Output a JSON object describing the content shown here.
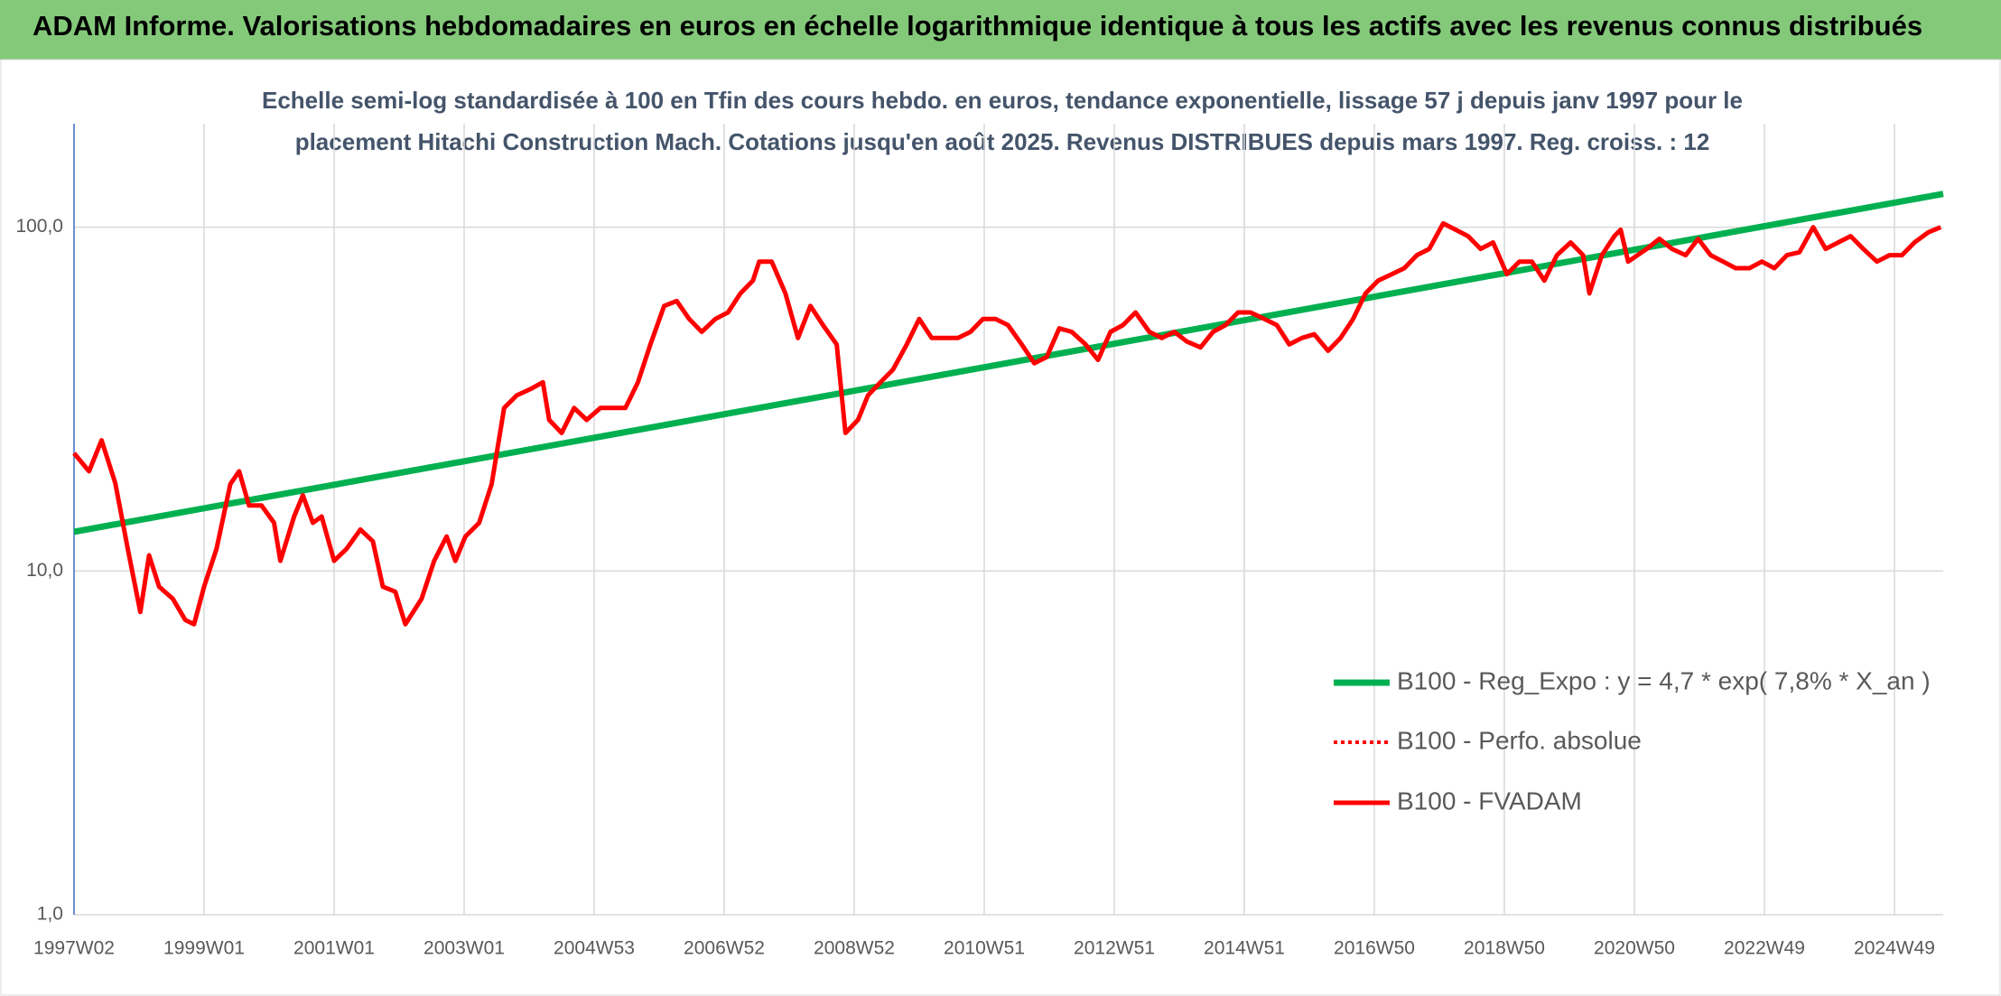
{
  "chart_data": {
    "type": "line",
    "title": "ADAM Informe. Valorisations hebdomadaires en euros en échelle logarithmique identique à tous les actifs avec les revenus connus distribués",
    "subtitle": [
      "Echelle semi-log standardisée à 100 en Tfin des cours hebdo. en euros, tendance exponentielle, lissage 57 j depuis janv 1997 pour le",
      "placement Hitachi Construction Mach. Cotations jusqu'en août 2025. Revenus DISTRIBUES depuis mars 1997. Reg. croiss. : 12"
    ],
    "log_scale": true,
    "grid": true,
    "legend": "right",
    "xlim": [
      0,
      1495
    ],
    "ylim": [
      1,
      200
    ],
    "yticks": [
      {
        "value": 1,
        "label": "1,0"
      },
      {
        "value": 10,
        "label": "10,0"
      },
      {
        "value": 100,
        "label": "100,0"
      }
    ],
    "xticks": [
      {
        "value": 0,
        "label": "1997W02"
      },
      {
        "value": 104,
        "label": "1999W01"
      },
      {
        "value": 208,
        "label": "2001W01"
      },
      {
        "value": 312,
        "label": "2003W01"
      },
      {
        "value": 416,
        "label": "2004W53"
      },
      {
        "value": 520,
        "label": "2006W52"
      },
      {
        "value": 624,
        "label": "2008W52"
      },
      {
        "value": 728,
        "label": "2010W51"
      },
      {
        "value": 832,
        "label": "2012W51"
      },
      {
        "value": 936,
        "label": "2014W51"
      },
      {
        "value": 1040,
        "label": "2016W50"
      },
      {
        "value": 1144,
        "label": "2018W50"
      },
      {
        "value": 1248,
        "label": "2020W50"
      },
      {
        "value": 1352,
        "label": "2022W49"
      },
      {
        "value": 1456,
        "label": "2024W49"
      }
    ],
    "series": [
      {
        "name": "B100 - Reg_Expo : y = 4,7 * exp( 7,8% *  X_an )",
        "color": "#00b050",
        "x": [
          0,
          1495
        ],
        "values": [
          13,
          125
        ]
      },
      {
        "name": "B100 - Perfo. absolue",
        "color": "#ff0000",
        "dash": "dotted"
      },
      {
        "name": "B100 - FVADAM",
        "color": "#ff0000",
        "x": [
          0,
          12,
          22,
          33,
          43,
          53,
          60,
          68,
          79,
          89,
          96,
          104,
          114,
          125,
          132,
          140,
          150,
          160,
          165,
          176,
          183,
          191,
          198,
          208,
          218,
          229,
          239,
          247,
          257,
          265,
          278,
          288,
          298,
          305,
          313,
          324,
          334,
          344,
          354,
          365,
          375,
          380,
          390,
          400,
          410,
          421,
          431,
          441,
          451,
          461,
          472,
          482,
          492,
          502,
          513,
          523,
          533,
          543,
          548,
          558,
          569,
          579,
          589,
          599,
          610,
          617,
          627,
          635,
          645,
          655,
          666,
          676,
          686,
          696,
          707,
          717,
          727,
          737,
          747,
          758,
          768,
          778,
          788,
          798,
          809,
          819,
          829,
          839,
          849,
          860,
          870,
          880,
          890,
          901,
          911,
          921,
          931,
          941,
          952,
          962,
          972,
          982,
          992,
          1003,
          1013,
          1023,
          1033,
          1043,
          1054,
          1064,
          1074,
          1084,
          1095,
          1105,
          1115,
          1125,
          1135,
          1146,
          1156,
          1166,
          1176,
          1186,
          1197,
          1207,
          1212,
          1222,
          1232,
          1237,
          1243,
          1258,
          1268,
          1278,
          1289,
          1299,
          1309,
          1319,
          1329,
          1340,
          1350,
          1360,
          1370,
          1380,
          1391,
          1401,
          1411,
          1421,
          1431,
          1442,
          1452,
          1462,
          1472,
          1483,
          1493
        ],
        "values": [
          22,
          19.5,
          24,
          18,
          11.6,
          7.6,
          11.1,
          9,
          8.3,
          7.2,
          7,
          9,
          11.6,
          17.9,
          19.5,
          15.5,
          15.5,
          13.8,
          10.7,
          14.4,
          16.6,
          13.8,
          14.4,
          10.7,
          11.6,
          13.2,
          12.2,
          9,
          8.7,
          7,
          8.3,
          10.7,
          12.6,
          10.7,
          12.6,
          13.8,
          17.9,
          29.8,
          32.4,
          33.8,
          35.4,
          27.5,
          25.2,
          29.8,
          27.5,
          29.8,
          29.8,
          29.8,
          35.4,
          45.6,
          59,
          61,
          54.1,
          49.6,
          54.1,
          56.5,
          64.2,
          69.9,
          79.4,
          79.4,
          64.2,
          47.6,
          59,
          51.9,
          45.6,
          25.2,
          27.5,
          32.4,
          35.4,
          38.5,
          45.6,
          54.1,
          47.6,
          47.6,
          47.6,
          49.6,
          54.1,
          54.1,
          51.9,
          45.6,
          40.2,
          41.9,
          50.8,
          49.6,
          45.6,
          41.1,
          49.6,
          51.9,
          56.5,
          49.6,
          47.6,
          49.6,
          46.5,
          44.7,
          49.6,
          51.9,
          56.5,
          56.5,
          54.1,
          51.9,
          45.6,
          47.6,
          48.8,
          43.7,
          47.6,
          54.1,
          64.2,
          69.9,
          73,
          76,
          82.9,
          86.5,
          102.6,
          98.3,
          94.2,
          86.5,
          90.3,
          73,
          79.4,
          79.4,
          69.9,
          82.9,
          90.3,
          82.9,
          64.2,
          82.9,
          94.2,
          98.3,
          79.4,
          86.5,
          92.5,
          86.5,
          82.9,
          92.5,
          82.9,
          79.4,
          76,
          76,
          79.4,
          76,
          82.9,
          84.6,
          100,
          86.5,
          90.3,
          94.2,
          86.5,
          79.4,
          82.9,
          82.9,
          90.3,
          96.6,
          100
        ]
      }
    ]
  }
}
